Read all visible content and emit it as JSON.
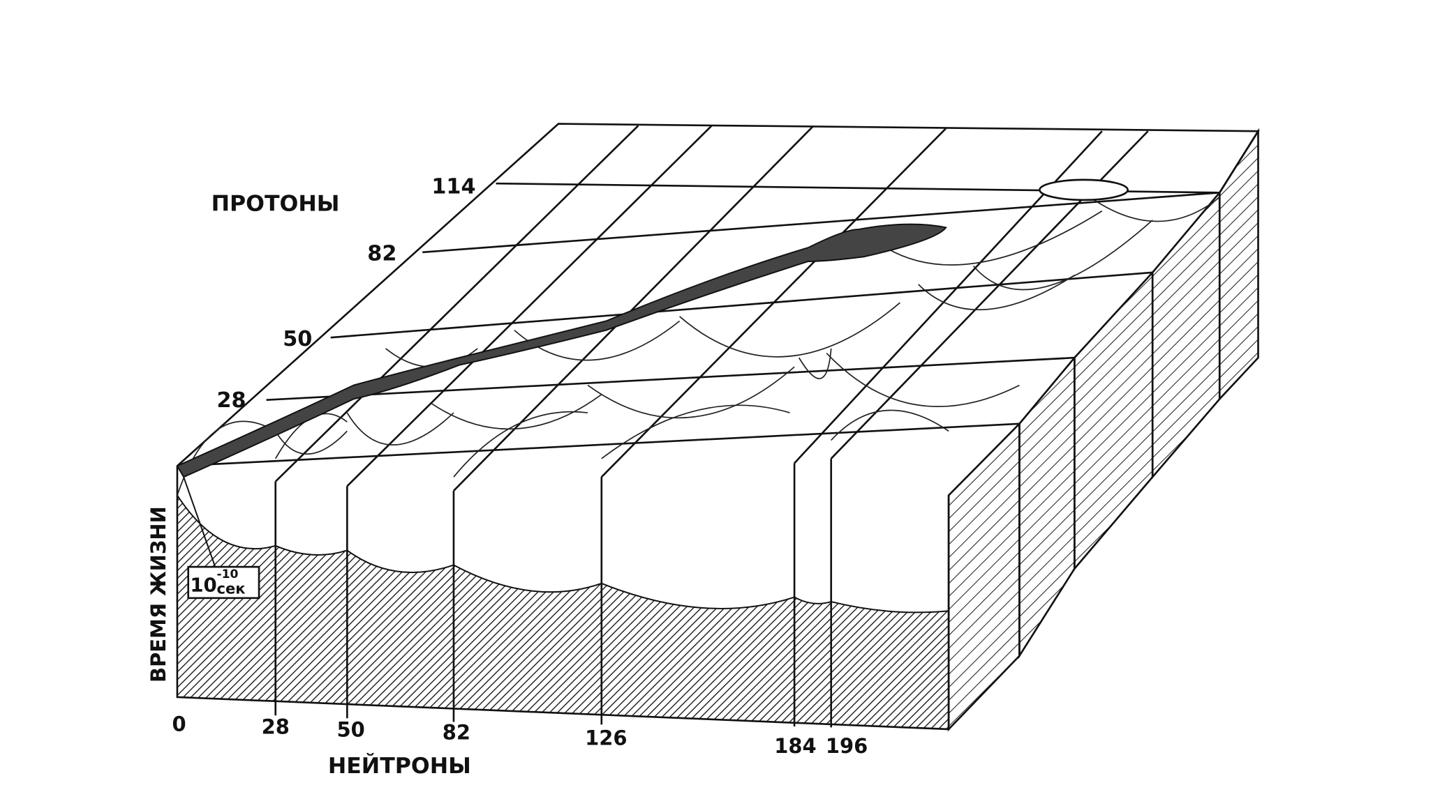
{
  "axes": {
    "protons": {
      "label": "ПРОТОНЫ",
      "ticks": [
        114,
        82,
        50,
        28
      ]
    },
    "neutrons": {
      "label": "НЕЙТРОНЫ",
      "ticks": [
        0,
        28,
        50,
        82,
        126,
        184,
        196
      ]
    },
    "lifetime": {
      "label": "ВРЕМЯ ЖИЗНИ",
      "marker": {
        "base": "10",
        "exponent": "-10",
        "unit": "сек"
      }
    }
  }
}
